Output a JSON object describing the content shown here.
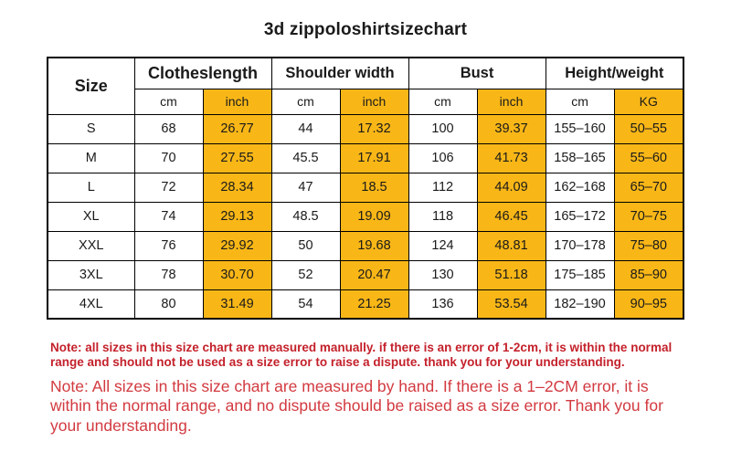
{
  "title": "3d zippoloshirtsizechart",
  "colors": {
    "highlight_orange": "#F9B717",
    "note_bold_red": "#C4212B",
    "note_regular_red": "#D23A40",
    "border_black": "#000000",
    "background": "#FFFFFF"
  },
  "table": {
    "size_header": "Size",
    "groups": [
      {
        "label": "Clotheslength",
        "units": [
          "cm",
          "inch"
        ]
      },
      {
        "label": "Shoulder width",
        "units": [
          "cm",
          "inch"
        ]
      },
      {
        "label": "Bust",
        "units": [
          "cm",
          "inch"
        ]
      },
      {
        "label": "Height/weight",
        "units": [
          "cm",
          "KG"
        ]
      }
    ],
    "rows": [
      {
        "size": "S",
        "values": [
          "68",
          "26.77",
          "44",
          "17.32",
          "100",
          "39.37",
          "155–160",
          "50–55"
        ]
      },
      {
        "size": "M",
        "values": [
          "70",
          "27.55",
          "45.5",
          "17.91",
          "106",
          "41.73",
          "158–165",
          "55–60"
        ]
      },
      {
        "size": "L",
        "values": [
          "72",
          "28.34",
          "47",
          "18.5",
          "112",
          "44.09",
          "162–168",
          "65–70"
        ]
      },
      {
        "size": "XL",
        "values": [
          "74",
          "29.13",
          "48.5",
          "19.09",
          "118",
          "46.45",
          "165–172",
          "70–75"
        ]
      },
      {
        "size": "XXL",
        "values": [
          "76",
          "29.92",
          "50",
          "19.68",
          "124",
          "48.81",
          "170–178",
          "75–80"
        ]
      },
      {
        "size": "3XL",
        "values": [
          "78",
          "30.70",
          "52",
          "20.47",
          "130",
          "51.18",
          "175–185",
          "85–90"
        ]
      },
      {
        "size": "4XL",
        "values": [
          "80",
          "31.49",
          "54",
          "21.25",
          "136",
          "53.54",
          "182–190",
          "90–95"
        ]
      }
    ]
  },
  "notes": [
    {
      "text": "Note: all sizes in this size chart are measured manually. if there is an error of 1-2cm, it is within the normal range and should not be used as a size error to raise a dispute. thank you for your understanding."
    },
    {
      "text": "Note: All sizes in this size chart are measured by hand. If there is a 1–2CM error, it is within the normal range, and no dispute should be raised as a size error. Thank you for your understanding."
    }
  ],
  "chart_data": {
    "type": "table",
    "title": "3d zippoloshirtsizechart",
    "columns": [
      "Size",
      "Clotheslength cm",
      "Clotheslength inch",
      "Shoulder width cm",
      "Shoulder width inch",
      "Bust cm",
      "Bust inch",
      "Height cm",
      "Weight KG"
    ],
    "rows": [
      [
        "S",
        "68",
        "26.77",
        "44",
        "17.32",
        "100",
        "39.37",
        "155–160",
        "50–55"
      ],
      [
        "M",
        "70",
        "27.55",
        "45.5",
        "17.91",
        "106",
        "41.73",
        "158–165",
        "55–60"
      ],
      [
        "L",
        "72",
        "28.34",
        "47",
        "18.5",
        "112",
        "44.09",
        "162–168",
        "65–70"
      ],
      [
        "XL",
        "74",
        "29.13",
        "48.5",
        "19.09",
        "118",
        "46.45",
        "165–172",
        "70–75"
      ],
      [
        "XXL",
        "76",
        "29.92",
        "50",
        "19.68",
        "124",
        "48.81",
        "170–178",
        "75–80"
      ],
      [
        "3XL",
        "78",
        "30.70",
        "52",
        "20.47",
        "130",
        "51.18",
        "175–185",
        "85–90"
      ],
      [
        "4XL",
        "80",
        "31.49",
        "54",
        "21.25",
        "136",
        "53.54",
        "182–190",
        "90–95"
      ]
    ],
    "layout": {
      "highlighted_columns": [
        "Clotheslength inch",
        "Shoulder width inch",
        "Bust inch",
        "Weight KG"
      ],
      "header_rows": 2
    }
  }
}
